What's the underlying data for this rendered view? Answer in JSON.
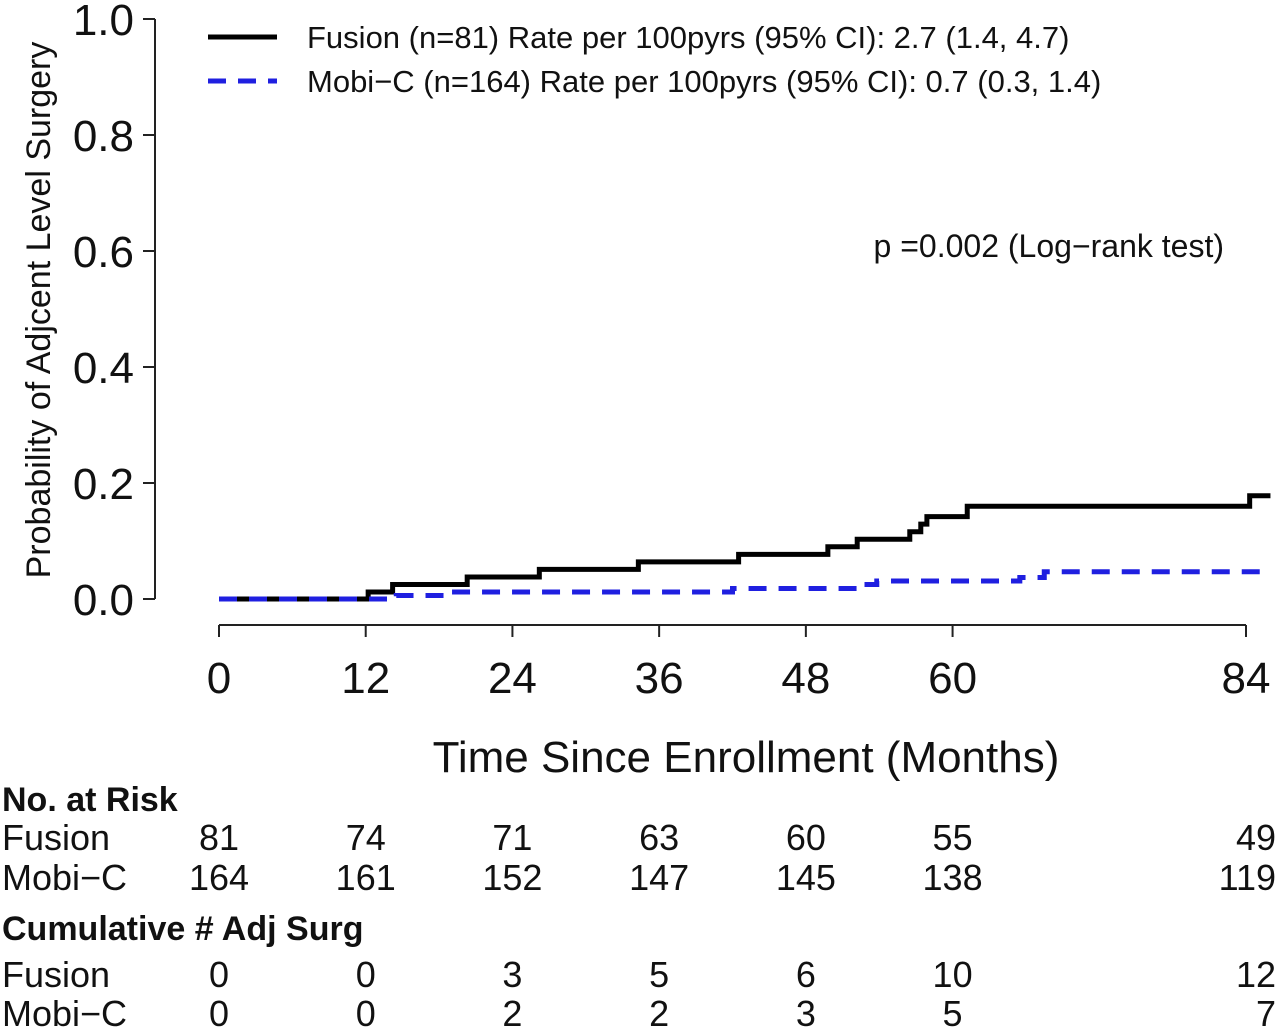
{
  "chart_data": {
    "type": "line",
    "subtype": "kaplan-meier-cumulative-incidence",
    "title": "",
    "xlabel": "Time Since Enrollment (Months)",
    "ylabel": "Probability of Adjcent Level Surgery",
    "xlim": [
      0,
      86
    ],
    "ylim": [
      0,
      1.0
    ],
    "x_ticks": [
      0,
      12,
      24,
      36,
      48,
      60,
      84
    ],
    "y_ticks": [
      "0.0",
      "0.2",
      "0.4",
      "0.6",
      "0.8",
      "1.0"
    ],
    "grid": false,
    "legend_position": "top",
    "series": [
      {
        "name": "Fusion (n=81) Rate per 100pyrs (95% CI): 2.7 (1.4, 4.7)",
        "line_style": "solid",
        "color": "#000000",
        "steps": [
          [
            0,
            0.0
          ],
          [
            12.2,
            0.012
          ],
          [
            14.2,
            0.025
          ],
          [
            20.3,
            0.038
          ],
          [
            26.2,
            0.051
          ],
          [
            34.3,
            0.064
          ],
          [
            42.5,
            0.077
          ],
          [
            49.8,
            0.09
          ],
          [
            52.2,
            0.103
          ],
          [
            56.5,
            0.116
          ],
          [
            57.4,
            0.129
          ],
          [
            57.9,
            0.142
          ],
          [
            61.2,
            0.16
          ],
          [
            83.8,
            0.16
          ],
          [
            84.3,
            0.178
          ],
          [
            86,
            0.178
          ]
        ]
      },
      {
        "name": "Mobi−C (n=164) Rate per 100pyrs (95% CI): 0.7 (0.3, 1.4)",
        "line_style": "dashed",
        "color": "#1f1fe0",
        "steps": [
          [
            0,
            0.0
          ],
          [
            14.5,
            0.006
          ],
          [
            19.0,
            0.012
          ],
          [
            42.0,
            0.018
          ],
          [
            52.5,
            0.025
          ],
          [
            53.8,
            0.031
          ],
          [
            65.5,
            0.037
          ],
          [
            67.5,
            0.047
          ],
          [
            86,
            0.047
          ]
        ]
      }
    ],
    "annotations": [
      "p =0.002 (Log−rank test)"
    ],
    "risk_table": {
      "heading": "No. at Risk",
      "times": [
        0,
        12,
        24,
        36,
        48,
        60,
        84
      ],
      "rows": [
        {
          "label": "Fusion",
          "values": [
            "81",
            "74",
            "71",
            "63",
            "60",
            "55",
            "49"
          ]
        },
        {
          "label": "Mobi−C",
          "values": [
            "164",
            "161",
            "152",
            "147",
            "145",
            "138",
            "119"
          ]
        }
      ]
    },
    "cumulative_table": {
      "heading": "Cumulative # Adj Surg",
      "times": [
        0,
        12,
        24,
        36,
        48,
        60,
        84
      ],
      "rows": [
        {
          "label": "Fusion",
          "values": [
            "0",
            "0",
            "3",
            "5",
            "6",
            "10",
            "12"
          ]
        },
        {
          "label": "Mobi−C",
          "values": [
            "0",
            "0",
            "2",
            "2",
            "3",
            "5",
            "7"
          ]
        }
      ]
    }
  }
}
